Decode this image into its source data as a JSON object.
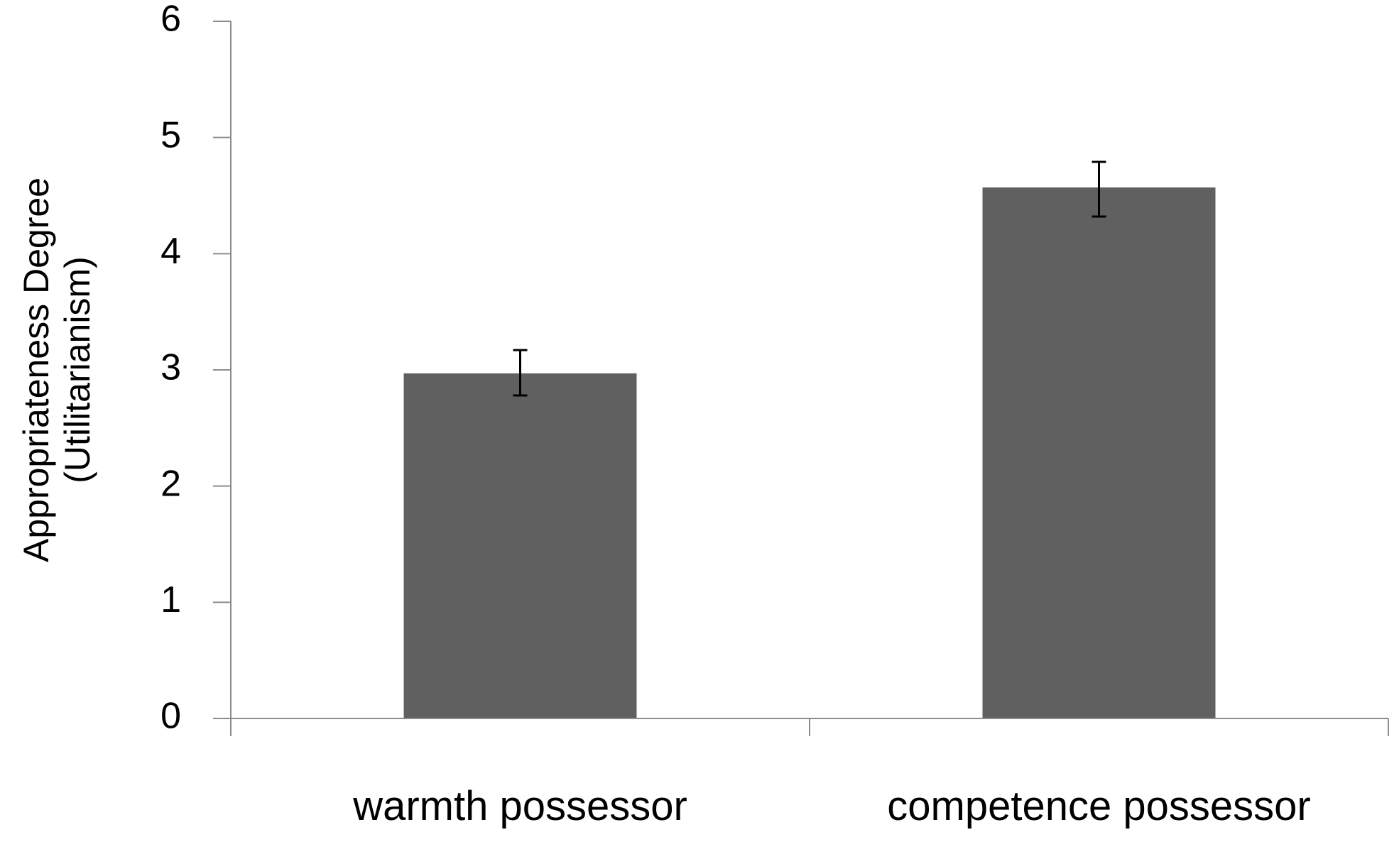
{
  "chart_data": {
    "type": "bar",
    "title": "",
    "xlabel": "",
    "ylabel_lines": [
      "Appropriateness Degree",
      "(Utilitarianism)"
    ],
    "categories": [
      "warmth possessor",
      "competence possessor"
    ],
    "values": [
      2.97,
      4.57
    ],
    "error_upper": [
      3.17,
      4.79
    ],
    "error_lower": [
      2.78,
      4.32
    ],
    "ylim": [
      0,
      6
    ],
    "yticks": [
      "0",
      "1",
      "2",
      "3",
      "4",
      "5",
      "6"
    ],
    "grid": false,
    "legend": "none",
    "bar_color": "#606060"
  }
}
